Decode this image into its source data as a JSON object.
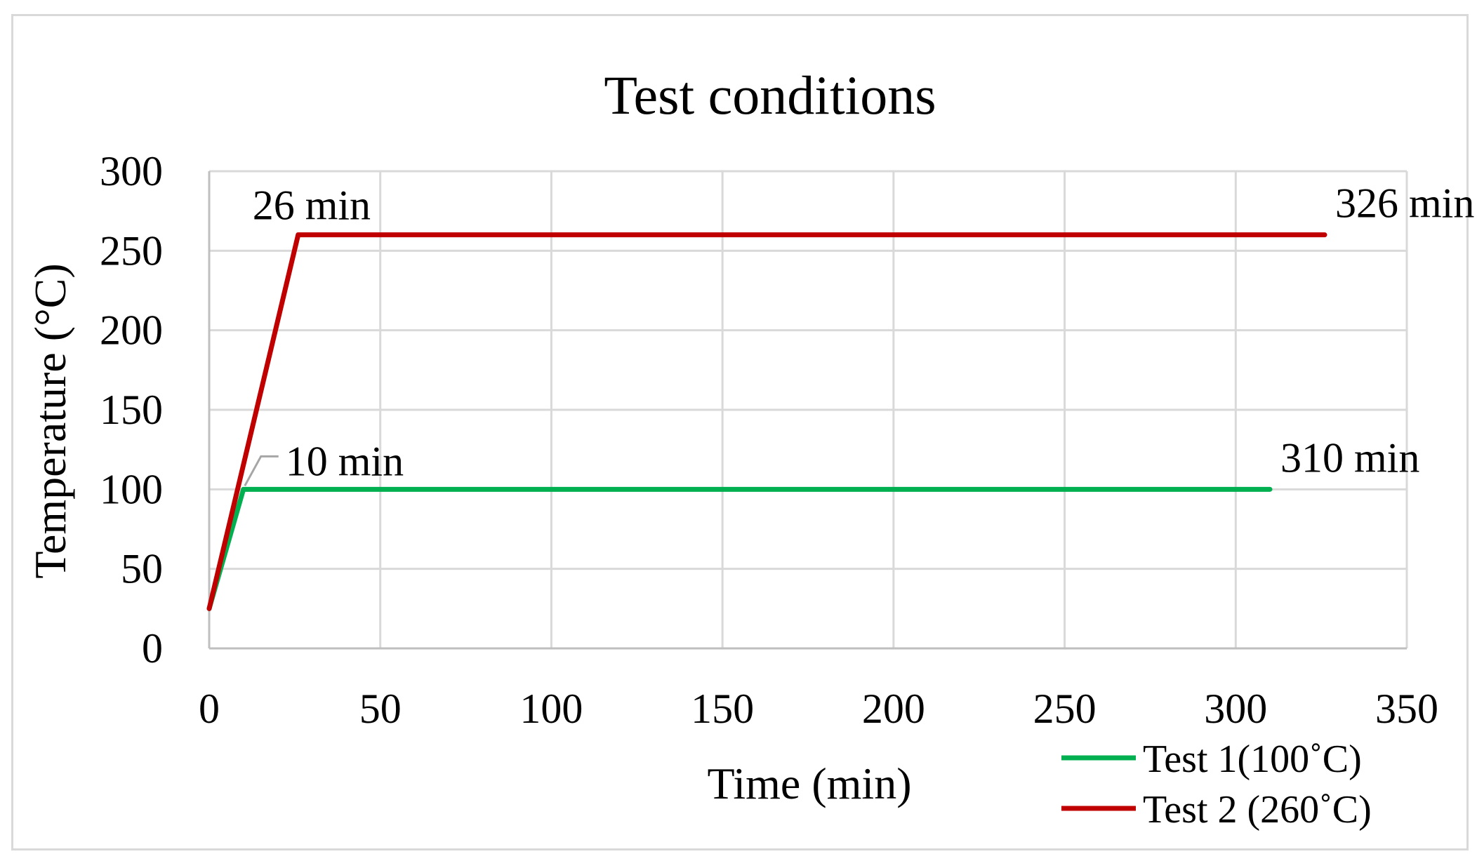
{
  "chart_data": {
    "type": "line",
    "title": "Test conditions",
    "xlabel": "Time (min)",
    "ylabel": "Temperature  (°C)",
    "xlim": [
      0,
      350
    ],
    "ylim": [
      0,
      300
    ],
    "x_ticks": [
      0,
      50,
      100,
      150,
      200,
      250,
      300,
      350
    ],
    "y_ticks": [
      0,
      50,
      100,
      150,
      200,
      250,
      300
    ],
    "grid": true,
    "legend_position": "bottom-right",
    "series": [
      {
        "name": "Test 1(100˚C)",
        "color": "#00b050",
        "points": [
          [
            0,
            25
          ],
          [
            10,
            100
          ],
          [
            310,
            100
          ]
        ]
      },
      {
        "name": "Test 2 (260˚C)",
        "color": "#c00000",
        "points": [
          [
            0,
            25
          ],
          [
            26,
            260
          ],
          [
            326,
            260
          ]
        ]
      }
    ],
    "annotations": [
      {
        "text": "26 min",
        "x": 26,
        "y": 260,
        "anchor": "above-left"
      },
      {
        "text": "326 min",
        "x": 326,
        "y": 260,
        "anchor": "above-right"
      },
      {
        "text": "10 min",
        "x": 10,
        "y": 100,
        "anchor": "leader-right"
      },
      {
        "text": "310 min",
        "x": 310,
        "y": 100,
        "anchor": "above-right"
      }
    ]
  }
}
